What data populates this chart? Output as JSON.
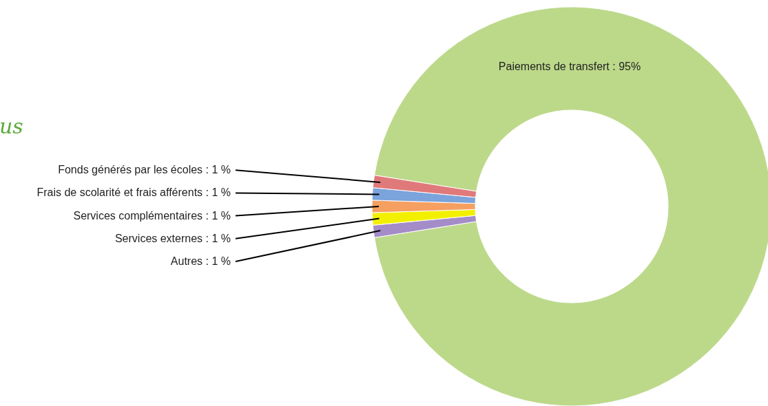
{
  "chart_data": {
    "type": "donut",
    "title": "us",
    "categories": [
      "Paiements de transfert",
      "Autres",
      "Services externes",
      "Services complémentaires",
      "Frais de scolarité et frais afférents",
      "Fonds générés par les écoles"
    ],
    "values": [
      95,
      1,
      1,
      1,
      1,
      1
    ],
    "value_labels": [
      "95%",
      "1 %",
      "1 %",
      "1 %",
      "1 %",
      "1 %"
    ],
    "colors": [
      "#bcd98a",
      "#a48cc8",
      "#f2f000",
      "#f5a060",
      "#7ba3dc",
      "#e07a7a"
    ],
    "legend": false
  }
}
